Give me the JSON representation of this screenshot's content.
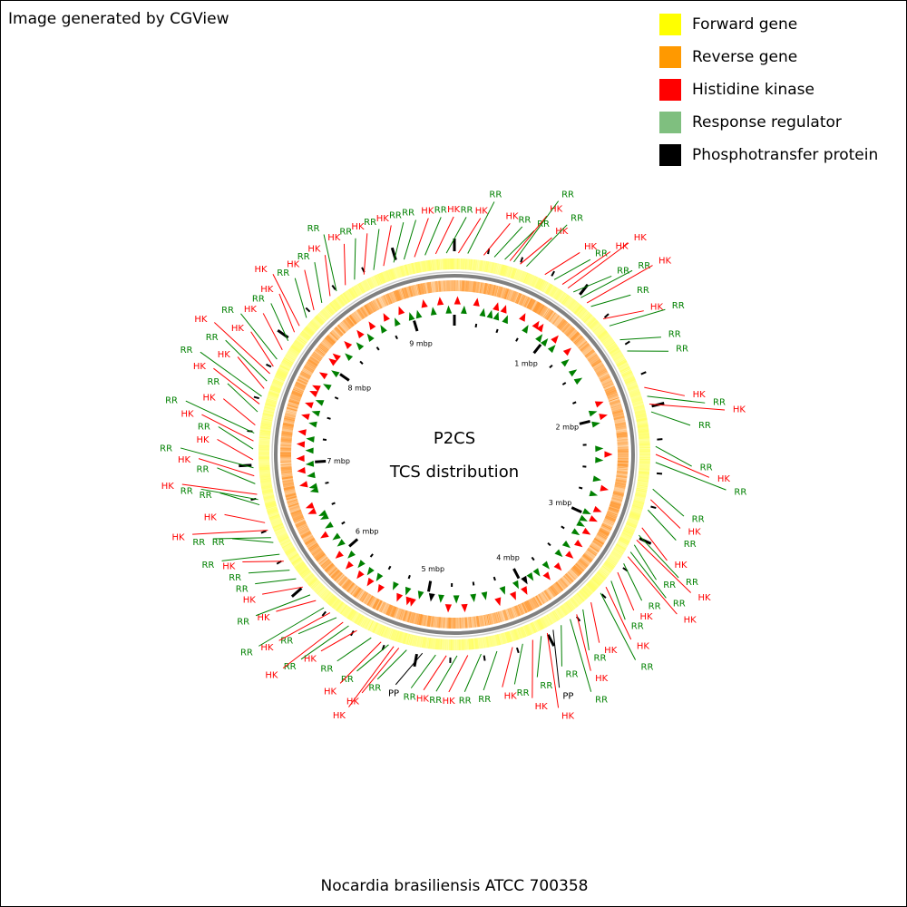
{
  "credit": "Image generated by CGView",
  "legend": [
    {
      "label": "Forward gene",
      "color": "#ffff00"
    },
    {
      "label": "Reverse gene",
      "color": "#ff9900"
    },
    {
      "label": "Histidine kinase",
      "color": "#ff0000"
    },
    {
      "label": "Response regulator",
      "color": "#7fbf7f"
    },
    {
      "label": "Phosphotransfer protein",
      "color": "#000000"
    }
  ],
  "center": {
    "line1": "P2CS",
    "line2": "TCS distribution"
  },
  "organism": "Nocardia brasiliensis ATCC 700358",
  "map": {
    "genome_mbp": 9.44,
    "tick_labels": [
      "1 mbp",
      "2 mbp",
      "3 mbp",
      "4 mbp",
      "5 mbp",
      "6 mbp",
      "7 mbp",
      "8 mbp",
      "9 mbp"
    ],
    "colors": {
      "HK": "#ff0000",
      "RR": "#008000",
      "PP": "#000000",
      "forward": "#ffff66",
      "reverse": "#ff9933",
      "backbone": "#808080"
    },
    "features": [
      {
        "mbp": 0.03,
        "type": "HK",
        "label": "HK"
      },
      {
        "mbp": 0.1,
        "type": "RR",
        "label": "RR"
      },
      {
        "mbp": 0.22,
        "type": "HK",
        "label": "HK"
      },
      {
        "mbp": 0.3,
        "type": "RR",
        "label": "RR"
      },
      {
        "mbp": 0.38,
        "type": "RR",
        "label": "RR"
      },
      {
        "mbp": 0.42,
        "type": "HK",
        "label": "HK"
      },
      {
        "mbp": 0.45,
        "type": "RR",
        "label": "RR"
      },
      {
        "mbp": 0.5,
        "type": "HK",
        "label": "HK"
      },
      {
        "mbp": 0.55,
        "type": "RR",
        "label": "RR"
      },
      {
        "mbp": 0.7,
        "type": "HK",
        "label": "HK"
      },
      {
        "mbp": 0.78,
        "type": "RR",
        "label": "RR"
      },
      {
        "mbp": 0.85,
        "type": "HK",
        "label": "HK"
      },
      {
        "mbp": 0.9,
        "type": "HK",
        "label": "HK"
      },
      {
        "mbp": 0.95,
        "type": "RR",
        "label": "RR"
      },
      {
        "mbp": 1.02,
        "type": "RR",
        "label": "RR"
      },
      {
        "mbp": 1.08,
        "type": "HK",
        "label": "HK"
      },
      {
        "mbp": 1.12,
        "type": "RR",
        "label": "RR"
      },
      {
        "mbp": 1.25,
        "type": "HK",
        "label": "HK"
      },
      {
        "mbp": 1.32,
        "type": "RR",
        "label": "RR"
      },
      {
        "mbp": 1.45,
        "type": "RR",
        "label": "RR"
      },
      {
        "mbp": 1.55,
        "type": "RR",
        "label": "RR"
      },
      {
        "mbp": 1.85,
        "type": "HK",
        "label": "HK"
      },
      {
        "mbp": 1.92,
        "type": "RR",
        "label": "RR"
      },
      {
        "mbp": 1.98,
        "type": "HK",
        "label": "HK"
      },
      {
        "mbp": 2.04,
        "type": "RR",
        "label": "RR"
      },
      {
        "mbp": 2.3,
        "type": "RR",
        "label": "RR"
      },
      {
        "mbp": 2.36,
        "type": "HK",
        "label": "HK"
      },
      {
        "mbp": 2.42,
        "type": "RR",
        "label": "RR"
      },
      {
        "mbp": 2.62,
        "type": "RR",
        "label": "RR"
      },
      {
        "mbp": 2.7,
        "type": "HK",
        "label": "HK"
      },
      {
        "mbp": 2.78,
        "type": "RR",
        "label": "RR"
      },
      {
        "mbp": 2.92,
        "type": "HK",
        "label": "HK"
      },
      {
        "mbp": 2.98,
        "type": "RR",
        "label": "RR"
      },
      {
        "mbp": 3.02,
        "type": "HK",
        "label": "HK"
      },
      {
        "mbp": 3.06,
        "type": "RR",
        "label": "RR"
      },
      {
        "mbp": 3.12,
        "type": "RR",
        "label": "RR"
      },
      {
        "mbp": 3.16,
        "type": "HK",
        "label": "HK"
      },
      {
        "mbp": 3.22,
        "type": "RR",
        "label": "RR"
      },
      {
        "mbp": 3.3,
        "type": "HK",
        "label": "HK"
      },
      {
        "mbp": 3.38,
        "type": "RR",
        "label": "RR"
      },
      {
        "mbp": 3.44,
        "type": "HK",
        "label": "HK"
      },
      {
        "mbp": 3.5,
        "type": "RR",
        "label": "RR"
      },
      {
        "mbp": 3.6,
        "type": "HK",
        "label": "HK"
      },
      {
        "mbp": 3.68,
        "type": "RR",
        "label": "RR"
      },
      {
        "mbp": 3.74,
        "type": "HK",
        "label": "HK"
      },
      {
        "mbp": 3.8,
        "type": "RR",
        "label": "RR"
      },
      {
        "mbp": 3.88,
        "type": "RR",
        "label": "RR"
      },
      {
        "mbp": 3.95,
        "type": "PP",
        "label": "PP"
      },
      {
        "mbp": 4.0,
        "type": "HK",
        "label": "HK"
      },
      {
        "mbp": 4.05,
        "type": "RR",
        "label": "RR"
      },
      {
        "mbp": 4.12,
        "type": "HK",
        "label": "HK"
      },
      {
        "mbp": 4.2,
        "type": "RR",
        "label": "RR"
      },
      {
        "mbp": 4.28,
        "type": "HK",
        "label": "HK"
      },
      {
        "mbp": 4.4,
        "type": "RR",
        "label": "RR"
      },
      {
        "mbp": 4.52,
        "type": "RR",
        "label": "RR"
      },
      {
        "mbp": 4.62,
        "type": "HK",
        "label": "HK"
      },
      {
        "mbp": 4.7,
        "type": "RR",
        "label": "RR"
      },
      {
        "mbp": 4.78,
        "type": "HK",
        "label": "HK"
      },
      {
        "mbp": 4.86,
        "type": "RR",
        "label": "RR"
      },
      {
        "mbp": 4.96,
        "type": "PP",
        "label": "PP"
      },
      {
        "mbp": 5.08,
        "type": "RR",
        "label": "RR"
      },
      {
        "mbp": 5.14,
        "type": "HK",
        "label": "HK"
      },
      {
        "mbp": 5.18,
        "type": "HK",
        "label": "HK"
      },
      {
        "mbp": 5.22,
        "type": "RR",
        "label": "RR"
      },
      {
        "mbp": 5.28,
        "type": "HK",
        "label": "HK"
      },
      {
        "mbp": 5.36,
        "type": "RR",
        "label": "RR"
      },
      {
        "mbp": 5.48,
        "type": "HK",
        "label": "HK"
      },
      {
        "mbp": 5.55,
        "type": "RR",
        "label": "RR"
      },
      {
        "mbp": 5.6,
        "type": "HK",
        "label": "HK"
      },
      {
        "mbp": 5.66,
        "type": "RR",
        "label": "RR"
      },
      {
        "mbp": 5.72,
        "type": "HK",
        "label": "HK"
      },
      {
        "mbp": 5.78,
        "type": "RR",
        "label": "RR"
      },
      {
        "mbp": 5.86,
        "type": "HK",
        "label": "HK"
      },
      {
        "mbp": 5.92,
        "type": "RR",
        "label": "RR"
      },
      {
        "mbp": 6.0,
        "type": "HK",
        "label": "HK"
      },
      {
        "mbp": 6.08,
        "type": "RR",
        "label": "RR"
      },
      {
        "mbp": 6.16,
        "type": "RR",
        "label": "RR"
      },
      {
        "mbp": 6.24,
        "type": "HK",
        "label": "HK"
      },
      {
        "mbp": 6.3,
        "type": "RR",
        "label": "RR"
      },
      {
        "mbp": 6.4,
        "type": "RR",
        "label": "RR"
      },
      {
        "mbp": 6.44,
        "type": "RR",
        "label": "RR"
      },
      {
        "mbp": 6.5,
        "type": "HK",
        "label": "HK"
      },
      {
        "mbp": 6.56,
        "type": "HK",
        "label": "HK"
      },
      {
        "mbp": 6.7,
        "type": "RR",
        "label": "RR"
      },
      {
        "mbp": 6.74,
        "type": "RR",
        "label": "RR"
      },
      {
        "mbp": 6.78,
        "type": "HK",
        "label": "HK"
      },
      {
        "mbp": 6.86,
        "type": "RR",
        "label": "RR"
      },
      {
        "mbp": 6.92,
        "type": "HK",
        "label": "HK"
      },
      {
        "mbp": 6.98,
        "type": "RR",
        "label": "RR"
      },
      {
        "mbp": 7.04,
        "type": "HK",
        "label": "HK"
      },
      {
        "mbp": 7.12,
        "type": "RR",
        "label": "RR"
      },
      {
        "mbp": 7.18,
        "type": "HK",
        "label": "HK"
      },
      {
        "mbp": 7.24,
        "type": "RR",
        "label": "RR"
      },
      {
        "mbp": 7.3,
        "type": "HK",
        "label": "HK"
      },
      {
        "mbp": 7.4,
        "type": "RR",
        "label": "RR"
      },
      {
        "mbp": 7.46,
        "type": "HK",
        "label": "HK"
      },
      {
        "mbp": 7.52,
        "type": "RR",
        "label": "RR"
      },
      {
        "mbp": 7.58,
        "type": "HK",
        "label": "HK"
      },
      {
        "mbp": 7.64,
        "type": "RR",
        "label": "RR"
      },
      {
        "mbp": 7.7,
        "type": "HK",
        "label": "HK"
      },
      {
        "mbp": 7.76,
        "type": "HK",
        "label": "HK"
      },
      {
        "mbp": 7.82,
        "type": "RR",
        "label": "RR"
      },
      {
        "mbp": 7.9,
        "type": "HK",
        "label": "HK"
      },
      {
        "mbp": 7.98,
        "type": "RR",
        "label": "RR"
      },
      {
        "mbp": 8.06,
        "type": "HK",
        "label": "HK"
      },
      {
        "mbp": 8.12,
        "type": "HK",
        "label": "HK"
      },
      {
        "mbp": 8.2,
        "type": "RR",
        "label": "RR"
      },
      {
        "mbp": 8.28,
        "type": "HK",
        "label": "HK"
      },
      {
        "mbp": 8.36,
        "type": "RR",
        "label": "RR"
      },
      {
        "mbp": 8.44,
        "type": "HK",
        "label": "HK"
      },
      {
        "mbp": 8.5,
        "type": "RR",
        "label": "RR"
      },
      {
        "mbp": 8.58,
        "type": "HK",
        "label": "HK"
      },
      {
        "mbp": 8.66,
        "type": "RR",
        "label": "RR"
      },
      {
        "mbp": 8.74,
        "type": "HK",
        "label": "HK"
      },
      {
        "mbp": 8.82,
        "type": "RR",
        "label": "RR"
      },
      {
        "mbp": 8.9,
        "type": "HK",
        "label": "HK"
      },
      {
        "mbp": 8.98,
        "type": "RR",
        "label": "RR"
      },
      {
        "mbp": 9.06,
        "type": "RR",
        "label": "RR"
      },
      {
        "mbp": 9.14,
        "type": "HK",
        "label": "HK"
      },
      {
        "mbp": 9.22,
        "type": "RR",
        "label": "RR"
      },
      {
        "mbp": 9.3,
        "type": "HK",
        "label": "HK"
      },
      {
        "mbp": 9.38,
        "type": "RR",
        "label": "RR"
      }
    ]
  }
}
